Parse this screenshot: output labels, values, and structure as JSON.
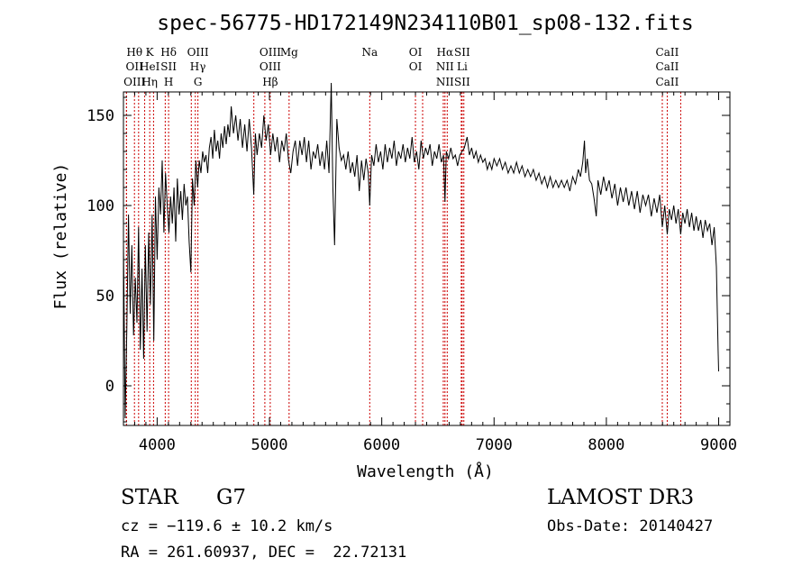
{
  "chart_data": {
    "type": "line",
    "title": "spec-56775-HD172149N234110B01_sp08-132.fits",
    "xlabel": "Wavelength (Å)",
    "ylabel": "Flux (relative)",
    "xlim": [
      3700,
      9100
    ],
    "ylim": [
      -22,
      163
    ],
    "xticks": [
      4000,
      5000,
      6000,
      7000,
      8000,
      9000
    ],
    "yticks": [
      0,
      50,
      100,
      150
    ],
    "series": [
      {
        "name": "flux",
        "points": [
          [
            3700,
            80
          ],
          [
            3715,
            -18
          ],
          [
            3730,
            30
          ],
          [
            3745,
            95
          ],
          [
            3760,
            40
          ],
          [
            3775,
            78
          ],
          [
            3790,
            28
          ],
          [
            3805,
            60
          ],
          [
            3820,
            35
          ],
          [
            3835,
            88
          ],
          [
            3850,
            20
          ],
          [
            3865,
            65
          ],
          [
            3880,
            15
          ],
          [
            3895,
            78
          ],
          [
            3910,
            30
          ],
          [
            3925,
            85
          ],
          [
            3940,
            45
          ],
          [
            3955,
            95
          ],
          [
            3970,
            25
          ],
          [
            3985,
            105
          ],
          [
            4000,
            70
          ],
          [
            4015,
            110
          ],
          [
            4030,
            95
          ],
          [
            4045,
            125
          ],
          [
            4060,
            85
          ],
          [
            4075,
            118
          ],
          [
            4090,
            100
          ],
          [
            4105,
            85
          ],
          [
            4120,
            105
          ],
          [
            4135,
            90
          ],
          [
            4150,
            110
          ],
          [
            4165,
            80
          ],
          [
            4180,
            115
          ],
          [
            4195,
            95
          ],
          [
            4210,
            108
          ],
          [
            4225,
            92
          ],
          [
            4240,
            112
          ],
          [
            4255,
            100
          ],
          [
            4270,
            105
          ],
          [
            4285,
            80
          ],
          [
            4300,
            63
          ],
          [
            4315,
            115
          ],
          [
            4330,
            100
          ],
          [
            4345,
            125
          ],
          [
            4360,
            110
          ],
          [
            4375,
            125
          ],
          [
            4390,
            118
          ],
          [
            4405,
            130
          ],
          [
            4420,
            124
          ],
          [
            4435,
            128
          ],
          [
            4450,
            118
          ],
          [
            4465,
            132
          ],
          [
            4480,
            138
          ],
          [
            4495,
            126
          ],
          [
            4510,
            142
          ],
          [
            4525,
            130
          ],
          [
            4540,
            136
          ],
          [
            4555,
            126
          ],
          [
            4570,
            140
          ],
          [
            4585,
            132
          ],
          [
            4600,
            144
          ],
          [
            4615,
            134
          ],
          [
            4630,
            145
          ],
          [
            4645,
            138
          ],
          [
            4660,
            155
          ],
          [
            4680,
            140
          ],
          [
            4700,
            150
          ],
          [
            4720,
            136
          ],
          [
            4740,
            148
          ],
          [
            4760,
            132
          ],
          [
            4780,
            145
          ],
          [
            4800,
            130
          ],
          [
            4820,
            148
          ],
          [
            4840,
            132
          ],
          [
            4860,
            106
          ],
          [
            4875,
            140
          ],
          [
            4890,
            128
          ],
          [
            4910,
            140
          ],
          [
            4930,
            132
          ],
          [
            4950,
            150
          ],
          [
            4970,
            136
          ],
          [
            4990,
            145
          ],
          [
            5010,
            128
          ],
          [
            5030,
            140
          ],
          [
            5050,
            130
          ],
          [
            5070,
            138
          ],
          [
            5090,
            124
          ],
          [
            5110,
            136
          ],
          [
            5130,
            130
          ],
          [
            5150,
            140
          ],
          [
            5170,
            125
          ],
          [
            5190,
            118
          ],
          [
            5210,
            130
          ],
          [
            5230,
            136
          ],
          [
            5250,
            122
          ],
          [
            5270,
            136
          ],
          [
            5290,
            128
          ],
          [
            5310,
            138
          ],
          [
            5330,
            124
          ],
          [
            5350,
            136
          ],
          [
            5370,
            120
          ],
          [
            5390,
            130
          ],
          [
            5410,
            126
          ],
          [
            5430,
            134
          ],
          [
            5450,
            122
          ],
          [
            5470,
            130
          ],
          [
            5490,
            120
          ],
          [
            5510,
            136
          ],
          [
            5530,
            118
          ],
          [
            5550,
            168
          ],
          [
            5565,
            110
          ],
          [
            5580,
            78
          ],
          [
            5600,
            148
          ],
          [
            5620,
            132
          ],
          [
            5640,
            125
          ],
          [
            5660,
            128
          ],
          [
            5680,
            120
          ],
          [
            5700,
            130
          ],
          [
            5720,
            118
          ],
          [
            5740,
            124
          ],
          [
            5760,
            116
          ],
          [
            5780,
            128
          ],
          [
            5800,
            108
          ],
          [
            5820,
            125
          ],
          [
            5840,
            114
          ],
          [
            5860,
            126
          ],
          [
            5880,
            118
          ],
          [
            5893,
            100
          ],
          [
            5910,
            128
          ],
          [
            5930,
            122
          ],
          [
            5950,
            134
          ],
          [
            5970,
            124
          ],
          [
            5990,
            130
          ],
          [
            6010,
            120
          ],
          [
            6030,
            134
          ],
          [
            6050,
            124
          ],
          [
            6070,
            132
          ],
          [
            6090,
            126
          ],
          [
            6110,
            136
          ],
          [
            6130,
            122
          ],
          [
            6150,
            130
          ],
          [
            6170,
            126
          ],
          [
            6190,
            134
          ],
          [
            6210,
            124
          ],
          [
            6230,
            132
          ],
          [
            6250,
            126
          ],
          [
            6270,
            138
          ],
          [
            6290,
            124
          ],
          [
            6310,
            130
          ],
          [
            6330,
            120
          ],
          [
            6350,
            136
          ],
          [
            6370,
            126
          ],
          [
            6390,
            132
          ],
          [
            6410,
            128
          ],
          [
            6430,
            134
          ],
          [
            6450,
            122
          ],
          [
            6470,
            130
          ],
          [
            6490,
            126
          ],
          [
            6510,
            134
          ],
          [
            6530,
            124
          ],
          [
            6550,
            128
          ],
          [
            6563,
            102
          ],
          [
            6575,
            130
          ],
          [
            6595,
            126
          ],
          [
            6615,
            132
          ],
          [
            6635,
            126
          ],
          [
            6655,
            128
          ],
          [
            6675,
            122
          ],
          [
            6695,
            128
          ],
          [
            6715,
            130
          ],
          [
            6735,
            132
          ],
          [
            6760,
            138
          ],
          [
            6780,
            128
          ],
          [
            6800,
            132
          ],
          [
            6820,
            126
          ],
          [
            6840,
            130
          ],
          [
            6860,
            124
          ],
          [
            6880,
            128
          ],
          [
            6900,
            124
          ],
          [
            6920,
            126
          ],
          [
            6940,
            120
          ],
          [
            6960,
            124
          ],
          [
            6980,
            120
          ],
          [
            7000,
            126
          ],
          [
            7025,
            122
          ],
          [
            7050,
            126
          ],
          [
            7075,
            120
          ],
          [
            7100,
            124
          ],
          [
            7125,
            118
          ],
          [
            7150,
            122
          ],
          [
            7175,
            118
          ],
          [
            7200,
            124
          ],
          [
            7225,
            118
          ],
          [
            7250,
            122
          ],
          [
            7275,
            116
          ],
          [
            7300,
            120
          ],
          [
            7325,
            116
          ],
          [
            7350,
            120
          ],
          [
            7375,
            114
          ],
          [
            7400,
            118
          ],
          [
            7425,
            112
          ],
          [
            7450,
            116
          ],
          [
            7475,
            110
          ],
          [
            7500,
            116
          ],
          [
            7525,
            110
          ],
          [
            7550,
            114
          ],
          [
            7575,
            110
          ],
          [
            7600,
            114
          ],
          [
            7625,
            110
          ],
          [
            7650,
            114
          ],
          [
            7675,
            108
          ],
          [
            7700,
            116
          ],
          [
            7725,
            112
          ],
          [
            7750,
            120
          ],
          [
            7770,
            116
          ],
          [
            7790,
            124
          ],
          [
            7805,
            136
          ],
          [
            7815,
            118
          ],
          [
            7830,
            126
          ],
          [
            7850,
            114
          ],
          [
            7870,
            112
          ],
          [
            7890,
            104
          ],
          [
            7910,
            94
          ],
          [
            7925,
            114
          ],
          [
            7950,
            106
          ],
          [
            7975,
            116
          ],
          [
            8000,
            108
          ],
          [
            8025,
            114
          ],
          [
            8050,
            104
          ],
          [
            8075,
            112
          ],
          [
            8100,
            100
          ],
          [
            8125,
            110
          ],
          [
            8150,
            102
          ],
          [
            8175,
            110
          ],
          [
            8200,
            100
          ],
          [
            8225,
            108
          ],
          [
            8250,
            98
          ],
          [
            8275,
            108
          ],
          [
            8300,
            96
          ],
          [
            8325,
            106
          ],
          [
            8350,
            100
          ],
          [
            8375,
            106
          ],
          [
            8400,
            94
          ],
          [
            8425,
            104
          ],
          [
            8450,
            96
          ],
          [
            8475,
            106
          ],
          [
            8498,
            88
          ],
          [
            8520,
            100
          ],
          [
            8542,
            84
          ],
          [
            8560,
            98
          ],
          [
            8580,
            92
          ],
          [
            8600,
            100
          ],
          [
            8620,
            90
          ],
          [
            8640,
            98
          ],
          [
            8662,
            84
          ],
          [
            8680,
            96
          ],
          [
            8700,
            90
          ],
          [
            8720,
            98
          ],
          [
            8740,
            88
          ],
          [
            8760,
            96
          ],
          [
            8780,
            86
          ],
          [
            8800,
            94
          ],
          [
            8820,
            86
          ],
          [
            8840,
            92
          ],
          [
            8860,
            82
          ],
          [
            8880,
            92
          ],
          [
            8900,
            86
          ],
          [
            8920,
            90
          ],
          [
            8940,
            78
          ],
          [
            8960,
            88
          ],
          [
            8980,
            66
          ],
          [
            8995,
            20
          ],
          [
            9000,
            8
          ]
        ]
      }
    ],
    "line_groups": [
      {
        "labels": [
          "Hθ",
          "OII",
          "OIII"
        ],
        "waves": [
          3798,
          3727,
          3727
        ]
      },
      {
        "labels": [
          "K",
          "HeI",
          "Hη"
        ],
        "waves": [
          3934,
          3889,
          3835
        ]
      },
      {
        "labels": [
          "Hδ",
          "SII",
          "H"
        ],
        "waves": [
          4102,
          4072,
          3968
        ]
      },
      {
        "labels": [
          "OIII",
          "Hγ",
          "G"
        ],
        "waves": [
          4363,
          4340,
          4304
        ]
      },
      {
        "labels": [
          "OIII",
          "OIII",
          "Hβ"
        ],
        "waves": [
          5007,
          4959,
          4861
        ]
      },
      {
        "labels": [
          "Mg"
        ],
        "waves": [
          5175
        ]
      },
      {
        "labels": [
          "Na"
        ],
        "waves": [
          5893
        ]
      },
      {
        "labels": [
          "OI",
          "OI"
        ],
        "waves": [
          6300,
          6364
        ]
      },
      {
        "labels": [
          "Hα",
          "NII",
          "NII"
        ],
        "waves": [
          6563,
          6548,
          6583
        ]
      },
      {
        "labels": [
          "SII",
          "Li",
          "SII"
        ],
        "waves": [
          6716,
          6708,
          6731
        ]
      },
      {
        "labels": [
          "CaII",
          "CaII",
          "CaII"
        ],
        "waves": [
          8542,
          8498,
          8662
        ]
      }
    ],
    "line_color": "#cc0000"
  },
  "info": {
    "object_type": "STAR",
    "subclass": "G7",
    "survey": "LAMOST DR3",
    "velocity": "cz = −119.6 ± 10.2 km/s",
    "obs_date": "Obs-Date: 20140427",
    "coords": "RA = 261.60937, DEC =  22.72131"
  }
}
